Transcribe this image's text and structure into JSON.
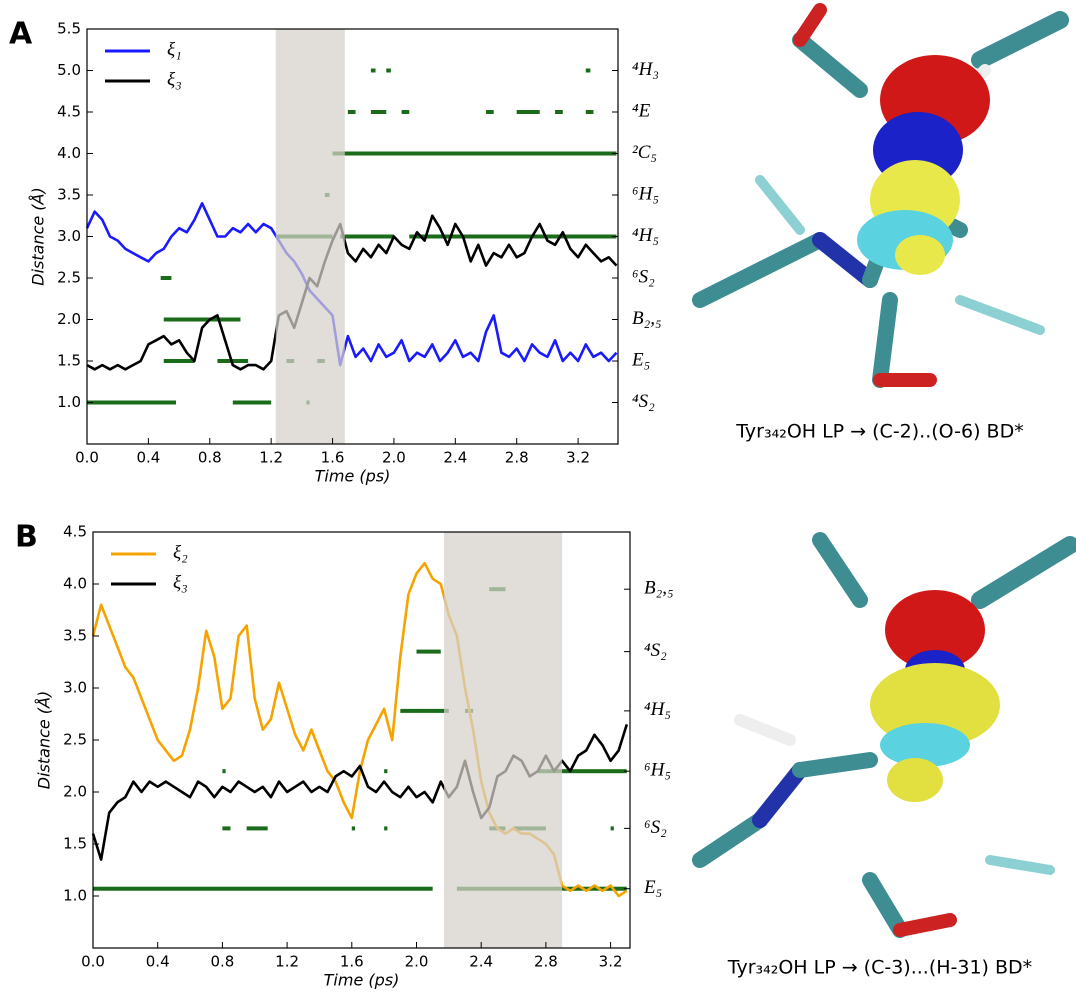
{
  "chart_data": [
    {
      "type": "line",
      "panel": "A",
      "xlabel": "Time (ps)",
      "ylabel": "Distance (Å)",
      "caption": "Tyr₃₄₂OH LP  → (C-2)..(O-6) BD*",
      "xlim": [
        0,
        3.46
      ],
      "ylim": [
        0.5,
        5.5
      ],
      "xticks": [
        {
          "value": 0,
          "label": "0.0"
        },
        0.4,
        0.8,
        1.2,
        1.6,
        {
          "value": 2,
          "label": "2.0"
        },
        2.4,
        2.8,
        3.2
      ],
      "yticks": [
        {
          "value": 1,
          "label": "1.0"
        },
        1.5,
        {
          "value": 2,
          "label": "2.0"
        },
        2.5,
        {
          "value": 3,
          "label": "3.0"
        },
        3.5,
        {
          "value": 4,
          "label": "4.0"
        },
        4.5,
        {
          "value": 5,
          "label": "5.0"
        },
        5.5
      ],
      "y2lim": [
        0.5,
        5.5
      ],
      "y2ticks": [
        {
          "value": 1,
          "label": "⁴S₂"
        },
        {
          "value": 1.5,
          "label": "E₅"
        },
        {
          "value": 2,
          "label": "B₂,₅"
        },
        {
          "value": 2.5,
          "label": "⁶S₂"
        },
        {
          "value": 3,
          "label": "⁴H₅"
        },
        {
          "value": 3.5,
          "label": "⁶H₅"
        },
        {
          "value": 4,
          "label": "²C₅"
        },
        {
          "value": 4.5,
          "label": "⁴E"
        },
        {
          "value": 5,
          "label": "⁴H₃"
        }
      ],
      "legend": "upper left",
      "shade": [
        1.23,
        1.68
      ],
      "x": [
        0,
        0.05,
        0.1,
        0.15,
        0.2,
        0.25,
        0.3,
        0.35,
        0.4,
        0.45,
        0.5,
        0.55,
        0.6,
        0.65,
        0.7,
        0.75,
        0.8,
        0.85,
        0.9,
        0.95,
        1.0,
        1.05,
        1.1,
        1.15,
        1.2,
        1.25,
        1.3,
        1.35,
        1.4,
        1.45,
        1.5,
        1.55,
        1.6,
        1.65,
        1.7,
        1.75,
        1.8,
        1.85,
        1.9,
        1.95,
        2.0,
        2.05,
        2.1,
        2.15,
        2.2,
        2.25,
        2.3,
        2.35,
        2.4,
        2.45,
        2.5,
        2.55,
        2.6,
        2.65,
        2.7,
        2.75,
        2.8,
        2.85,
        2.9,
        2.95,
        3.0,
        3.05,
        3.1,
        3.15,
        3.2,
        3.25,
        3.3,
        3.35,
        3.4,
        3.45
      ],
      "series": [
        {
          "name": "ξ₁",
          "color": "#1a1aff",
          "values": [
            3.1,
            3.3,
            3.2,
            3.0,
            2.95,
            2.85,
            2.8,
            2.75,
            2.7,
            2.8,
            2.85,
            3.0,
            3.1,
            3.05,
            3.2,
            3.4,
            3.2,
            3.0,
            3.0,
            3.1,
            3.05,
            3.15,
            3.05,
            3.15,
            3.1,
            2.95,
            2.8,
            2.7,
            2.55,
            2.35,
            2.25,
            2.15,
            2.05,
            1.45,
            1.8,
            1.55,
            1.65,
            1.5,
            1.7,
            1.55,
            1.6,
            1.75,
            1.5,
            1.6,
            1.55,
            1.7,
            1.5,
            1.6,
            1.75,
            1.55,
            1.6,
            1.5,
            1.85,
            2.05,
            1.6,
            1.55,
            1.65,
            1.5,
            1.7,
            1.6,
            1.55,
            1.75,
            1.5,
            1.6,
            1.5,
            1.7,
            1.55,
            1.6,
            1.5,
            1.6
          ]
        },
        {
          "name": "ξ₃",
          "color": "#000000",
          "values": [
            1.45,
            1.4,
            1.45,
            1.4,
            1.45,
            1.4,
            1.45,
            1.5,
            1.7,
            1.75,
            1.8,
            1.7,
            1.75,
            1.6,
            1.5,
            1.9,
            2.0,
            2.05,
            1.75,
            1.45,
            1.4,
            1.45,
            1.45,
            1.4,
            1.5,
            2.05,
            2.1,
            1.9,
            2.2,
            2.5,
            2.4,
            2.7,
            2.95,
            3.15,
            2.8,
            2.7,
            2.85,
            2.75,
            2.9,
            2.8,
            3.0,
            2.9,
            2.85,
            3.05,
            2.95,
            3.25,
            3.1,
            2.9,
            3.15,
            3.0,
            2.7,
            2.9,
            2.65,
            2.8,
            2.75,
            2.9,
            2.75,
            2.8,
            3.0,
            3.15,
            2.95,
            2.9,
            3.05,
            2.85,
            2.75,
            2.9,
            2.8,
            2.7,
            2.75,
            2.65
          ]
        }
      ],
      "strip_color": "#1a6b1a",
      "strips": [
        {
          "y": 1,
          "ranges": [
            [
              0,
              0.58
            ],
            [
              0.95,
              1.2
            ],
            [
              1.43,
              1.45
            ]
          ]
        },
        {
          "y": 1.5,
          "ranges": [
            [
              0.5,
              0.7
            ],
            [
              0.85,
              1.05
            ],
            [
              1.3,
              1.35
            ],
            [
              1.5,
              1.55
            ]
          ]
        },
        {
          "y": 2,
          "ranges": [
            [
              0.5,
              1.0
            ]
          ]
        },
        {
          "y": 2.5,
          "ranges": [
            [
              0.48,
              0.55
            ]
          ]
        },
        {
          "y": 3,
          "ranges": [
            [
              1.23,
              1.6
            ],
            [
              1.65,
              2.0
            ],
            [
              2.1,
              3.45
            ]
          ]
        },
        {
          "y": 3.5,
          "ranges": [
            [
              1.55,
              1.58
            ]
          ]
        },
        {
          "y": 4,
          "ranges": [
            [
              1.6,
              3.45
            ]
          ]
        },
        {
          "y": 4.5,
          "ranges": [
            [
              1.7,
              1.75
            ],
            [
              1.85,
              1.95
            ],
            [
              2.05,
              2.1
            ],
            [
              2.6,
              2.65
            ],
            [
              2.8,
              2.95
            ],
            [
              3.05,
              3.1
            ],
            [
              3.25,
              3.3
            ]
          ]
        },
        {
          "y": 5,
          "ranges": [
            [
              1.85,
              1.88
            ],
            [
              1.95,
              1.98
            ],
            [
              3.25,
              3.28
            ]
          ]
        }
      ]
    },
    {
      "type": "line",
      "panel": "B",
      "xlabel": "Time (ps)",
      "ylabel": "Distance (Å)",
      "caption": "Tyr₃₄₂OH LP → (C-3)...(H-31) BD*",
      "xlim": [
        0,
        3.32
      ],
      "ylim": [
        0.5,
        4.5
      ],
      "xticks": [
        {
          "value": 0,
          "label": "0.0"
        },
        0.4,
        0.8,
        1.2,
        1.6,
        {
          "value": 2,
          "label": "2.0"
        },
        2.4,
        2.8,
        3.2
      ],
      "yticks": [
        {
          "value": 1,
          "label": "1.0"
        },
        1.5,
        {
          "value": 2,
          "label": "2.0"
        },
        2.5,
        {
          "value": 3,
          "label": "3.0"
        },
        3.5,
        {
          "value": 4,
          "label": "4.0"
        },
        4.5
      ],
      "y2lim": [
        0.5,
        4.5
      ],
      "y2ticks": [
        {
          "value": 1.07,
          "label": "E₅"
        },
        {
          "value": 1.65,
          "label": "⁶S₂"
        },
        {
          "value": 2.2,
          "label": "⁶H₅"
        },
        {
          "value": 2.78,
          "label": "⁴H₅"
        },
        {
          "value": 3.35,
          "label": "⁴S₂"
        },
        {
          "value": 3.95,
          "label": "B₂,₅"
        }
      ],
      "legend": "upper left",
      "shade": [
        2.17,
        2.9
      ],
      "x": [
        0,
        0.05,
        0.1,
        0.15,
        0.2,
        0.25,
        0.3,
        0.35,
        0.4,
        0.45,
        0.5,
        0.55,
        0.6,
        0.65,
        0.7,
        0.75,
        0.8,
        0.85,
        0.9,
        0.95,
        1.0,
        1.05,
        1.1,
        1.15,
        1.2,
        1.25,
        1.3,
        1.35,
        1.4,
        1.45,
        1.5,
        1.55,
        1.6,
        1.65,
        1.7,
        1.75,
        1.8,
        1.85,
        1.9,
        1.95,
        2.0,
        2.05,
        2.1,
        2.15,
        2.2,
        2.25,
        2.3,
        2.35,
        2.4,
        2.45,
        2.5,
        2.55,
        2.6,
        2.65,
        2.7,
        2.75,
        2.8,
        2.85,
        2.9,
        2.95,
        3.0,
        3.05,
        3.1,
        3.15,
        3.2,
        3.25,
        3.3
      ],
      "series": [
        {
          "name": "ξ₂",
          "color": "#f5a300",
          "values": [
            3.5,
            3.8,
            3.6,
            3.4,
            3.2,
            3.1,
            2.9,
            2.7,
            2.5,
            2.4,
            2.3,
            2.35,
            2.6,
            3.0,
            3.55,
            3.3,
            2.8,
            2.9,
            3.5,
            3.6,
            2.9,
            2.6,
            2.7,
            3.05,
            2.8,
            2.55,
            2.4,
            2.6,
            2.4,
            2.2,
            2.1,
            1.9,
            1.75,
            2.2,
            2.5,
            2.65,
            2.8,
            2.5,
            3.3,
            3.9,
            4.1,
            4.2,
            4.05,
            4.0,
            3.7,
            3.5,
            3.0,
            2.6,
            2.1,
            1.8,
            1.65,
            1.6,
            1.65,
            1.6,
            1.6,
            1.55,
            1.5,
            1.4,
            1.1,
            1.05,
            1.1,
            1.05,
            1.1,
            1.05,
            1.1,
            1.0,
            1.05
          ]
        },
        {
          "name": "ξ₃",
          "color": "#000000",
          "values": [
            1.6,
            1.35,
            1.8,
            1.9,
            1.95,
            2.1,
            2.0,
            2.1,
            2.05,
            2.1,
            2.05,
            2.0,
            1.95,
            2.1,
            2.05,
            1.95,
            2.05,
            2.0,
            2.1,
            2.05,
            2.0,
            2.05,
            1.95,
            2.1,
            2.0,
            2.05,
            2.1,
            2.0,
            2.05,
            2.0,
            2.15,
            2.2,
            2.15,
            2.25,
            2.05,
            2.0,
            2.1,
            2.0,
            1.95,
            2.05,
            1.95,
            2.0,
            1.9,
            2.1,
            1.95,
            2.05,
            2.3,
            2.0,
            1.75,
            1.85,
            2.15,
            2.2,
            2.35,
            2.3,
            2.15,
            2.2,
            2.35,
            2.2,
            2.3,
            2.2,
            2.35,
            2.4,
            2.55,
            2.45,
            2.3,
            2.4,
            2.65
          ]
        }
      ],
      "strip_color": "#1a6b1a",
      "strips": [
        {
          "y": 1.07,
          "ranges": [
            [
              0,
              2.1
            ],
            [
              2.25,
              3.3
            ]
          ]
        },
        {
          "y": 1.65,
          "ranges": [
            [
              0.8,
              0.85
            ],
            [
              0.95,
              1.08
            ],
            [
              1.6,
              1.62
            ],
            [
              1.8,
              1.82
            ],
            [
              2.45,
              2.55
            ],
            [
              2.6,
              2.8
            ],
            [
              3.2,
              3.22
            ]
          ]
        },
        {
          "y": 2.2,
          "ranges": [
            [
              0.8,
              0.82
            ],
            [
              1.8,
              1.82
            ],
            [
              2.75,
              3.3
            ]
          ]
        },
        {
          "y": 2.78,
          "ranges": [
            [
              1.9,
              2.2
            ],
            [
              2.3,
              2.35
            ]
          ]
        },
        {
          "y": 3.35,
          "ranges": [
            [
              2.0,
              2.15
            ]
          ]
        },
        {
          "y": 3.95,
          "ranges": [
            [
              2.45,
              2.55
            ]
          ]
        }
      ]
    }
  ]
}
